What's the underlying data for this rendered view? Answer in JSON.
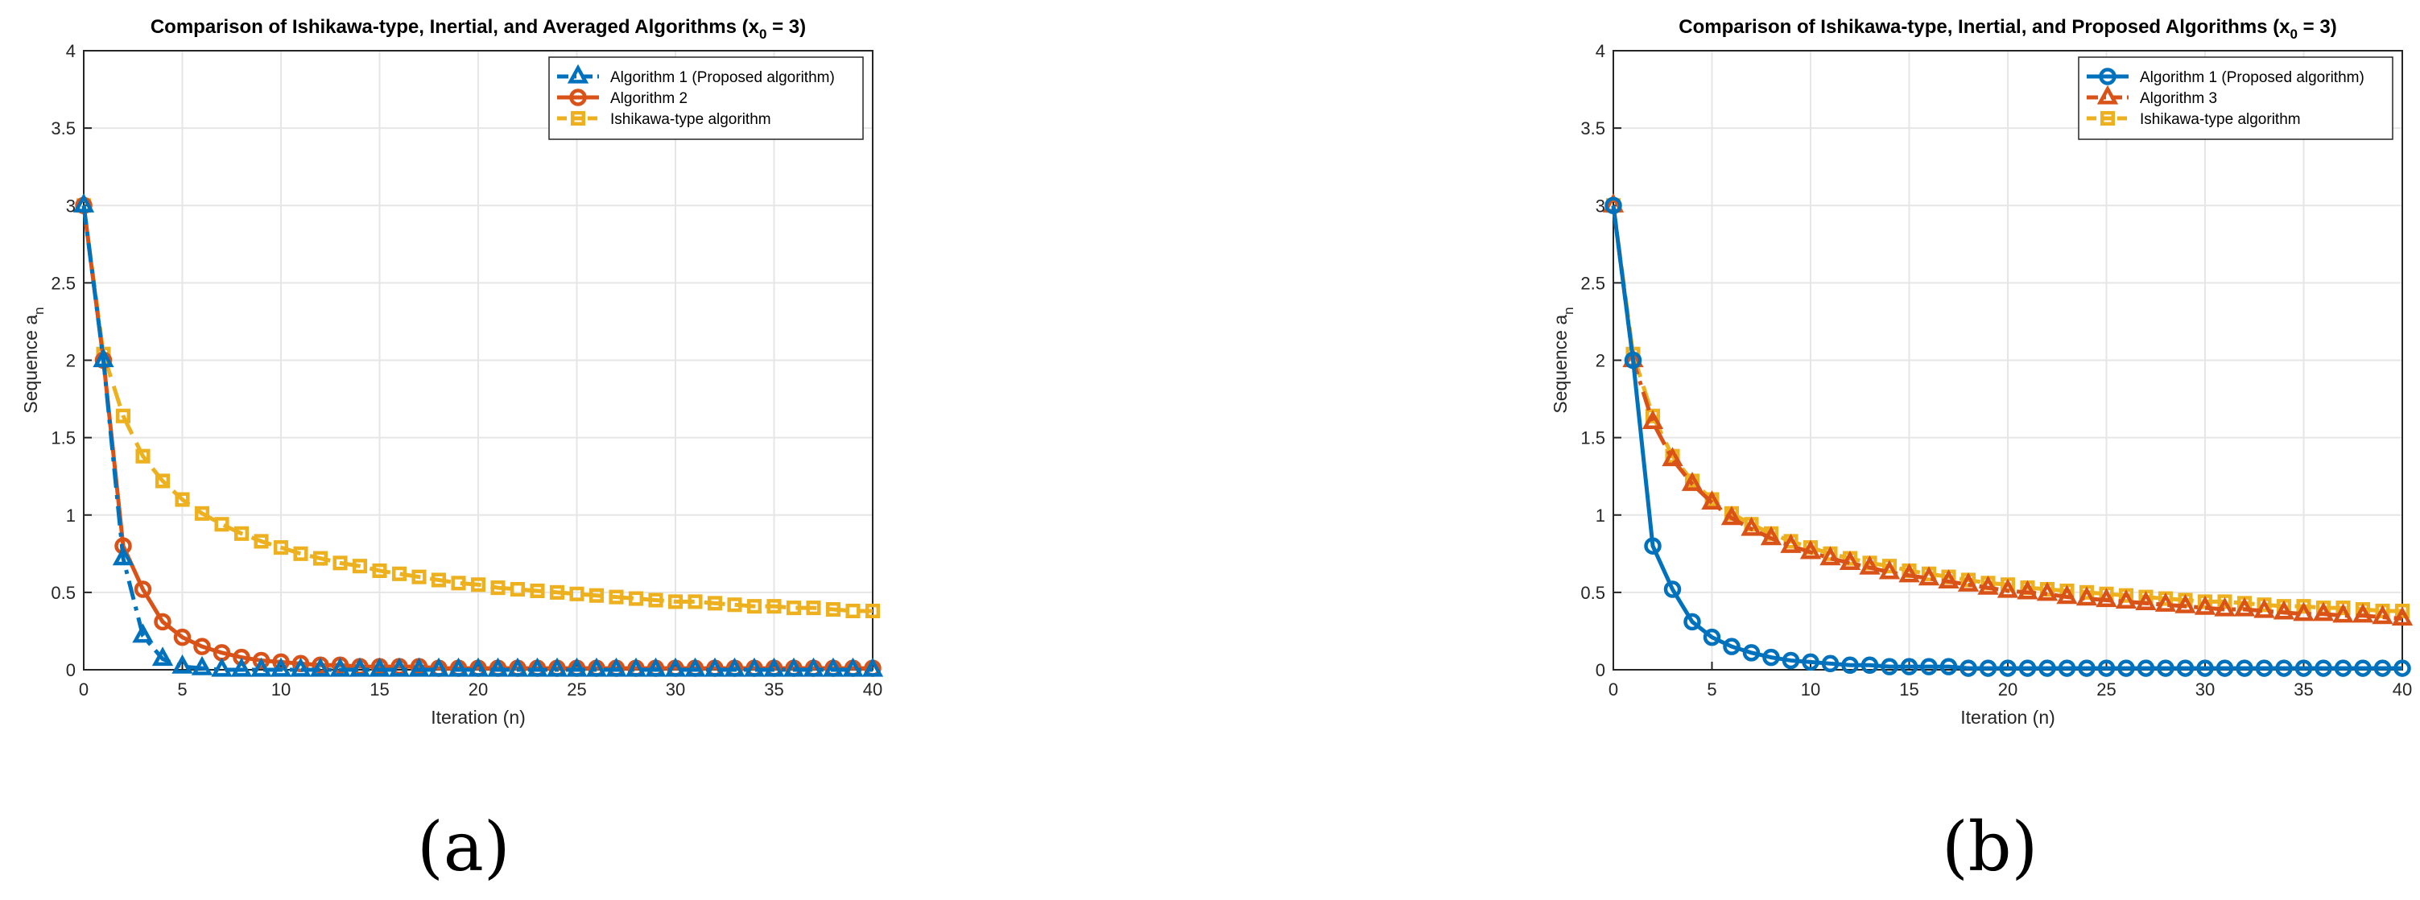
{
  "panel_labels": {
    "a": "(a)",
    "b": "(b)"
  },
  "chart_data": [
    {
      "type": "line",
      "title_prefix": "Comparison of Ishikawa-type, Inertial, and Averaged Algorithms (x",
      "title_subscript": "0",
      "title_suffix": " = 3)",
      "xlabel": "Iteration (n)",
      "ylabel": "Sequence a",
      "ylabel_subscript": "n",
      "xlim": [
        0,
        40
      ],
      "ylim": [
        0,
        4
      ],
      "xticks": [
        0,
        5,
        10,
        15,
        20,
        25,
        30,
        35,
        40
      ],
      "yticks": [
        0,
        0.5,
        1,
        1.5,
        2,
        2.5,
        3,
        3.5,
        4
      ],
      "grid": true,
      "legend_position": "top-right",
      "colors": {
        "blue": "#0072BD",
        "orange": "#D95319",
        "yellow": "#EDB120",
        "grid": "#e6e6e6",
        "axis": "#262626"
      },
      "series": [
        {
          "name": "Algorithm 1 (Proposed algorithm)",
          "color": "#0072BD",
          "line": "dashdot",
          "marker": "triangle",
          "x": [
            0,
            1,
            2,
            3,
            4,
            5,
            6,
            7,
            8,
            9,
            10,
            11,
            12,
            13,
            14,
            15,
            16,
            17,
            18,
            19,
            20,
            21,
            22,
            23,
            24,
            25,
            26,
            27,
            28,
            29,
            30,
            31,
            32,
            33,
            34,
            35,
            36,
            37,
            38,
            39,
            40
          ],
          "y": [
            3,
            2,
            0.72,
            0.22,
            0.07,
            0.02,
            0.01,
            0,
            0,
            0,
            0,
            0,
            0,
            0,
            0,
            0,
            0,
            0,
            0,
            0,
            0,
            0,
            0,
            0,
            0,
            0,
            0,
            0,
            0,
            0,
            0,
            0,
            0,
            0,
            0,
            0,
            0,
            0,
            0,
            0,
            0
          ]
        },
        {
          "name": "Algorithm 2",
          "color": "#D95319",
          "line": "solid",
          "marker": "circle",
          "x": [
            0,
            1,
            2,
            3,
            4,
            5,
            6,
            7,
            8,
            9,
            10,
            11,
            12,
            13,
            14,
            15,
            16,
            17,
            18,
            19,
            20,
            21,
            22,
            23,
            24,
            25,
            26,
            27,
            28,
            29,
            30,
            31,
            32,
            33,
            34,
            35,
            36,
            37,
            38,
            39,
            40
          ],
          "y": [
            3,
            2,
            0.8,
            0.52,
            0.31,
            0.21,
            0.15,
            0.11,
            0.08,
            0.06,
            0.05,
            0.04,
            0.03,
            0.03,
            0.02,
            0.02,
            0.02,
            0.02,
            0.01,
            0.01,
            0.01,
            0.01,
            0.01,
            0.01,
            0.01,
            0.01,
            0.01,
            0.01,
            0.01,
            0.01,
            0.01,
            0.01,
            0.01,
            0.01,
            0.01,
            0.01,
            0.01,
            0.01,
            0.01,
            0.01,
            0.01
          ]
        },
        {
          "name": "Ishikawa-type algorithm",
          "color": "#EDB120",
          "line": "dashed",
          "marker": "square",
          "x": [
            0,
            1,
            2,
            3,
            4,
            5,
            6,
            7,
            8,
            9,
            10,
            11,
            12,
            13,
            14,
            15,
            16,
            17,
            18,
            19,
            20,
            21,
            22,
            23,
            24,
            25,
            26,
            27,
            28,
            29,
            30,
            31,
            32,
            33,
            34,
            35,
            36,
            37,
            38,
            39,
            40
          ],
          "y": [
            3,
            2.04,
            1.64,
            1.38,
            1.22,
            1.1,
            1.01,
            0.94,
            0.88,
            0.83,
            0.79,
            0.75,
            0.72,
            0.69,
            0.67,
            0.64,
            0.62,
            0.6,
            0.58,
            0.56,
            0.55,
            0.53,
            0.52,
            0.51,
            0.5,
            0.49,
            0.48,
            0.47,
            0.46,
            0.45,
            0.44,
            0.44,
            0.43,
            0.42,
            0.41,
            0.41,
            0.4,
            0.4,
            0.39,
            0.38,
            0.38
          ]
        }
      ]
    },
    {
      "type": "line",
      "title_prefix": "Comparison of Ishikawa-type, Inertial, and Proposed Algorithms (x",
      "title_subscript": "0",
      "title_suffix": " = 3)",
      "xlabel": "Iteration (n)",
      "ylabel": "Sequence a",
      "ylabel_subscript": "n",
      "xlim": [
        0,
        40
      ],
      "ylim": [
        0,
        4
      ],
      "xticks": [
        0,
        5,
        10,
        15,
        20,
        25,
        30,
        35,
        40
      ],
      "yticks": [
        0,
        0.5,
        1,
        1.5,
        2,
        2.5,
        3,
        3.5,
        4
      ],
      "grid": true,
      "legend_position": "top-right",
      "colors": {
        "blue": "#0072BD",
        "orange": "#D95319",
        "yellow": "#EDB120",
        "grid": "#e6e6e6",
        "axis": "#262626"
      },
      "series": [
        {
          "name": "Algorithm 1 (Proposed algorithm)",
          "color": "#0072BD",
          "line": "solid",
          "marker": "circle",
          "x": [
            0,
            1,
            2,
            3,
            4,
            5,
            6,
            7,
            8,
            9,
            10,
            11,
            12,
            13,
            14,
            15,
            16,
            17,
            18,
            19,
            20,
            21,
            22,
            23,
            24,
            25,
            26,
            27,
            28,
            29,
            30,
            31,
            32,
            33,
            34,
            35,
            36,
            37,
            38,
            39,
            40
          ],
          "y": [
            3,
            2,
            0.8,
            0.52,
            0.31,
            0.21,
            0.15,
            0.11,
            0.08,
            0.06,
            0.05,
            0.04,
            0.03,
            0.03,
            0.02,
            0.02,
            0.02,
            0.02,
            0.01,
            0.01,
            0.01,
            0.01,
            0.01,
            0.01,
            0.01,
            0.01,
            0.01,
            0.01,
            0.01,
            0.01,
            0.01,
            0.01,
            0.01,
            0.01,
            0.01,
            0.01,
            0.01,
            0.01,
            0.01,
            0.01,
            0.01
          ]
        },
        {
          "name": "Algorithm 3",
          "color": "#D95319",
          "line": "dashdot",
          "marker": "triangle",
          "x": [
            0,
            1,
            2,
            3,
            4,
            5,
            6,
            7,
            8,
            9,
            10,
            11,
            12,
            13,
            14,
            15,
            16,
            17,
            18,
            19,
            20,
            21,
            22,
            23,
            24,
            25,
            26,
            27,
            28,
            29,
            30,
            31,
            32,
            33,
            34,
            35,
            36,
            37,
            38,
            39,
            40
          ],
          "y": [
            3,
            2,
            1.6,
            1.36,
            1.2,
            1.08,
            0.98,
            0.91,
            0.85,
            0.8,
            0.76,
            0.72,
            0.69,
            0.66,
            0.63,
            0.61,
            0.59,
            0.57,
            0.55,
            0.53,
            0.51,
            0.5,
            0.49,
            0.47,
            0.46,
            0.45,
            0.44,
            0.43,
            0.42,
            0.41,
            0.4,
            0.39,
            0.39,
            0.38,
            0.37,
            0.36,
            0.36,
            0.35,
            0.35,
            0.34,
            0.33
          ]
        },
        {
          "name": "Ishikawa-type algorithm",
          "color": "#EDB120",
          "line": "dashed",
          "marker": "square",
          "x": [
            0,
            1,
            2,
            3,
            4,
            5,
            6,
            7,
            8,
            9,
            10,
            11,
            12,
            13,
            14,
            15,
            16,
            17,
            18,
            19,
            20,
            21,
            22,
            23,
            24,
            25,
            26,
            27,
            28,
            29,
            30,
            31,
            32,
            33,
            34,
            35,
            36,
            37,
            38,
            39,
            40
          ],
          "y": [
            3,
            2.04,
            1.64,
            1.38,
            1.22,
            1.1,
            1.01,
            0.94,
            0.88,
            0.83,
            0.79,
            0.75,
            0.72,
            0.69,
            0.67,
            0.64,
            0.62,
            0.6,
            0.58,
            0.56,
            0.55,
            0.53,
            0.52,
            0.51,
            0.5,
            0.49,
            0.48,
            0.47,
            0.46,
            0.45,
            0.44,
            0.44,
            0.43,
            0.42,
            0.41,
            0.41,
            0.4,
            0.4,
            0.39,
            0.38,
            0.38
          ]
        }
      ]
    }
  ]
}
